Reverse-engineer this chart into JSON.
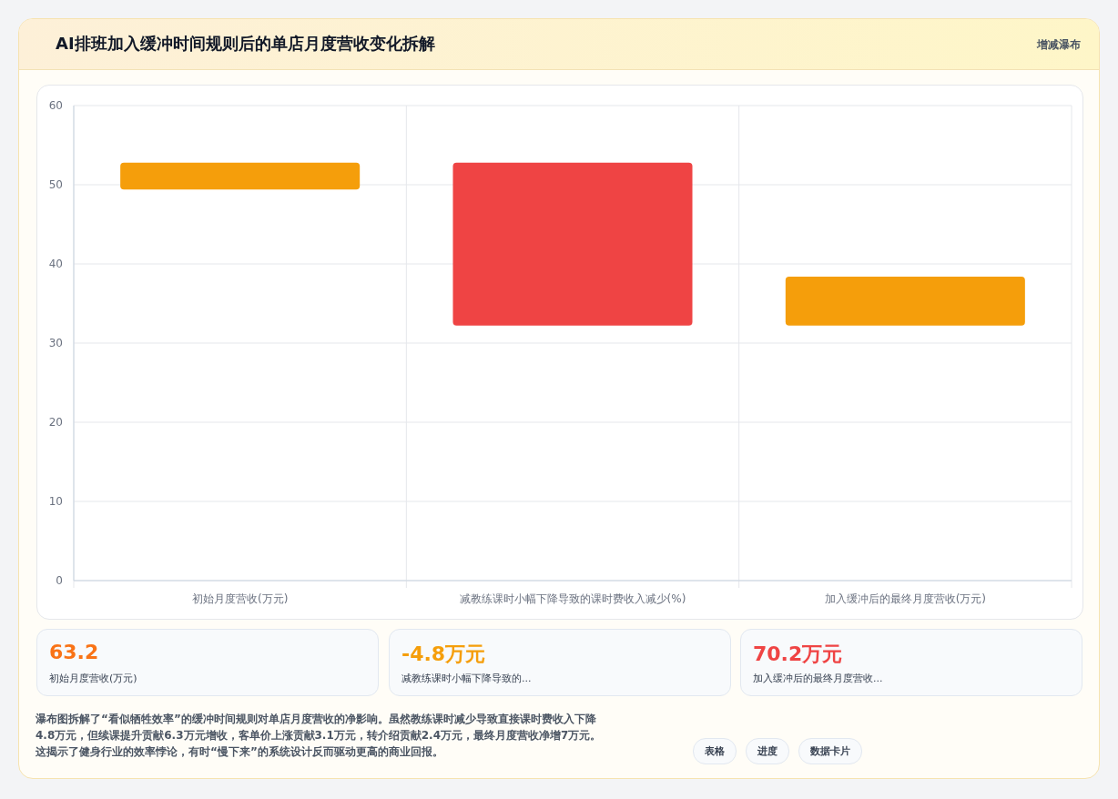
{
  "chart_data": {
    "type": "bar",
    "title": "AI排班加入缓冲时间规则后的单店月度营收变化拆解",
    "categories": [
      "初始月度营收(万元)",
      "减教练课时小幅下降导致的课时费收入减少(%)",
      "加入缓冲后的最终月度营收(万元)"
    ],
    "base": [
      49.4,
      32.2,
      32.2
    ],
    "values": [
      3.4,
      20.6,
      6.2
    ],
    "colors": [
      "#f59e0b",
      "#ef4444",
      "#f59e0b"
    ],
    "ylim": [
      0,
      60
    ],
    "yticks": [
      0,
      10,
      20,
      30,
      40,
      50,
      60
    ],
    "grid": true,
    "annotations": [
      "增减瀑布",
      "63.2",
      "初始月度营收(万元)",
      "-4.8万元",
      "减教练课时小幅下降导致的...",
      "70.2万元",
      "加入缓冲后的最终月度营收...",
      "瀑布图拆解了“看似牺牲效率”的缓冲时间规则对单店月度营收的净影响。虽然教练课时减少导致直接课时费收入下降4.8万元，但续课提升贡献6.3万元增收，客单价上涨贡献3.1万元，转介绍贡献2.4万元，最终月度营收净增7万元。这揭示了健身行业的效率悖论，有时“慢下来”的系统设计反而驱动更高的商业回报。",
      "表格",
      "进度",
      "数据卡片"
    ]
  }
}
